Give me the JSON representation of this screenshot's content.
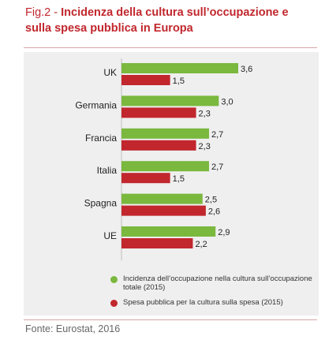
{
  "header": {
    "prefix": "Fig.2 - ",
    "title": "Incidenza della cultura sull’occupazione e sulla spesa pubblica in Europa"
  },
  "chart_data": {
    "type": "bar",
    "orientation": "horizontal",
    "categories": [
      "UK",
      "Germania",
      "Francia",
      "Italia",
      "Spagna",
      "UE"
    ],
    "series": [
      {
        "name": "Incidenza dell’occupazione nella cultura sull’occupazione totale (2015)",
        "color": "#7ab83e",
        "values": [
          3.6,
          3.0,
          2.7,
          2.7,
          2.5,
          2.9
        ],
        "labels": [
          "3,6",
          "3,0",
          "2,7",
          "2,7",
          "2,5",
          "2,9"
        ]
      },
      {
        "name": "Spesa pubblica per la cultura sulla spesa (2015)",
        "color": "#c1272d",
        "values": [
          1.5,
          2.3,
          2.3,
          1.5,
          2.6,
          2.2
        ],
        "labels": [
          "1,5",
          "2,3",
          "2,3",
          "1,5",
          "2,6",
          "2,2"
        ]
      }
    ],
    "xlim": [
      0,
      3.6
    ],
    "grid": false,
    "legend_position": "bottom"
  },
  "footer": {
    "source": "Fonte: Eurostat, 2016"
  }
}
